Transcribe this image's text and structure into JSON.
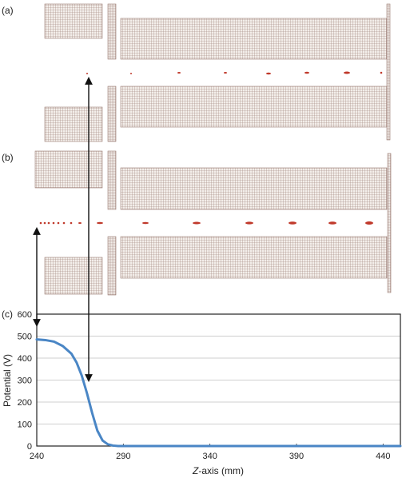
{
  "panels": {
    "a": {
      "label": "(a)"
    },
    "b": {
      "label": "(b)"
    },
    "c": {
      "label": "(c)"
    }
  },
  "colors": {
    "electrode": "#9a7b72",
    "electrode_fill": "#f1ebe7",
    "particles": "#c0392b",
    "curve": "#4a86c5",
    "axis": "#222222",
    "arrow": "#111111"
  },
  "chart_data": {
    "type": "line",
    "xlabel": "Z-axis (mm)",
    "ylabel": "Potential (V)",
    "xlim": [
      240,
      450
    ],
    "ylim": [
      0,
      600
    ],
    "xticks": [
      240,
      290,
      340,
      390,
      440
    ],
    "yticks": [
      0,
      100,
      200,
      300,
      400,
      500,
      600
    ],
    "series": [
      {
        "x": [
          240,
          245,
          250,
          255,
          260,
          263,
          266,
          269,
          272,
          275,
          278,
          281,
          284,
          287,
          290,
          300,
          320,
          340,
          360,
          380,
          400,
          420,
          440,
          450
        ],
        "y": [
          485,
          482,
          475,
          455,
          420,
          380,
          320,
          240,
          150,
          70,
          25,
          8,
          2,
          0,
          0,
          0,
          0,
          0,
          0,
          0,
          0,
          0,
          0,
          0
        ]
      }
    ]
  }
}
